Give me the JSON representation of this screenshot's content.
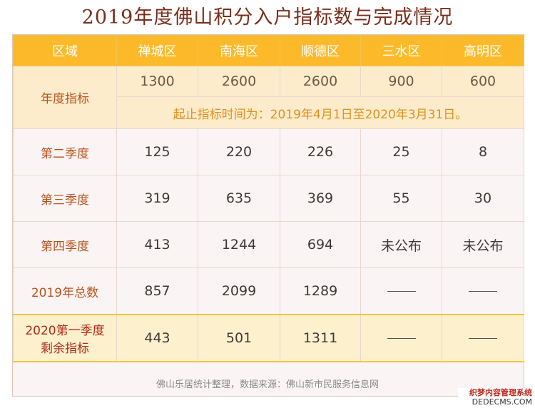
{
  "title": "2019年度佛山积分入户指标数与完成情况",
  "table": {
    "headers": [
      "区域",
      "禅城区",
      "南海区",
      "顺德区",
      "三水区",
      "高明区"
    ],
    "annual_target": {
      "label": "年度指标",
      "values": [
        "1300",
        "2600",
        "2600",
        "900",
        "600"
      ],
      "note": "起止指标时间为：2019年4月1日至2020年3月31日。"
    },
    "rows": [
      {
        "label": "第二季度",
        "values": [
          "125",
          "220",
          "226",
          "25",
          "8"
        ]
      },
      {
        "label": "第三季度",
        "values": [
          "319",
          "635",
          "369",
          "55",
          "30"
        ]
      },
      {
        "label": "第四季度",
        "values": [
          "413",
          "1244",
          "694",
          "未公布",
          "未公布"
        ]
      },
      {
        "label": "2019年总数",
        "values": [
          "857",
          "2099",
          "1289",
          "",
          ""
        ]
      }
    ],
    "remaining": {
      "label_line1": "2020第一季度",
      "label_line2": "剩余指标",
      "values": [
        "443",
        "501",
        "1311",
        "",
        ""
      ]
    }
  },
  "footer": "佛山乐居统计整理，数据来源：佛山新市民服务信息网",
  "watermark": {
    "line1": "织梦内容管理系统",
    "line2": "DEDECMS.COM"
  }
}
